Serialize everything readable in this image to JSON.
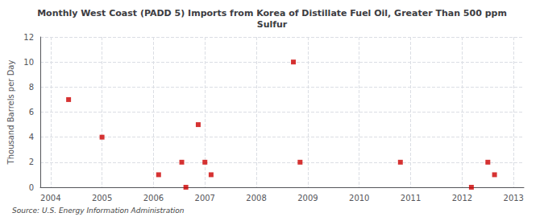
{
  "chart_data": {
    "type": "scatter",
    "title": "Monthly West Coast (PADD 5) Imports from Korea of Distillate Fuel Oil, Greater Than 500 ppm\nSulfur",
    "ylabel": "Thousand Barrels per Day",
    "source": "Source: U.S. Energy Information Administration",
    "x": [
      2004.35,
      2005.0,
      2006.1,
      2006.55,
      2006.63,
      2006.87,
      2007.0,
      2007.12,
      2008.72,
      2008.85,
      2010.8,
      2012.18,
      2012.5,
      2012.63
    ],
    "values": [
      7,
      4,
      1,
      2,
      0,
      5,
      2,
      1,
      10,
      2,
      2,
      0,
      2,
      1
    ],
    "color": "#cc0000",
    "marker": "square",
    "xlim": [
      2003.8,
      2013.2
    ],
    "ylim": [
      0,
      12
    ],
    "xticks": [
      2004,
      2005,
      2006,
      2007,
      2008,
      2009,
      2010,
      2011,
      2012,
      2013
    ],
    "yticks": [
      0,
      2,
      4,
      6,
      8,
      10,
      12
    ],
    "grid": true
  }
}
